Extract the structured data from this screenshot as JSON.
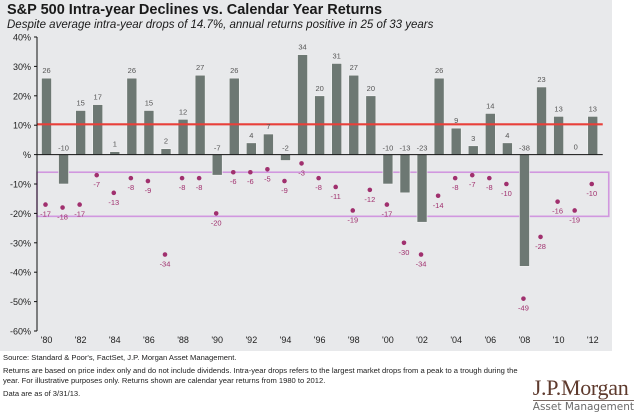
{
  "header": {
    "title": "S&P 500 Intra-year Declines vs. Calendar Year Returns",
    "subtitle": "Despite average intra-year drops of 14.7%, annual returns positive in 25 of 33 years"
  },
  "chart_data": {
    "type": "bar",
    "title": "S&P 500 Intra-year Declines vs. Calendar Year Returns",
    "subtitle": "Despite average intra-year drops of 14.7%, annual returns positive in 25 of 33 years",
    "xlabel": "",
    "ylabel": "",
    "ylim": [
      -60,
      40
    ],
    "yticks": [
      40,
      30,
      20,
      10,
      0,
      -10,
      -20,
      -30,
      -40,
      -50,
      -60
    ],
    "ytick_labels": [
      "40%",
      "30%",
      "20%",
      "10%",
      "%",
      "-10%",
      "-20%",
      "-30%",
      "-40%",
      "-50%",
      "-60%"
    ],
    "categories": [
      1980,
      1981,
      1982,
      1983,
      1984,
      1985,
      1986,
      1987,
      1988,
      1989,
      1990,
      1991,
      1992,
      1993,
      1994,
      1995,
      1996,
      1997,
      1998,
      1999,
      2000,
      2001,
      2002,
      2003,
      2004,
      2005,
      2006,
      2007,
      2008,
      2009,
      2010,
      2011,
      2012
    ],
    "xtick_labels": [
      "'80",
      "'82",
      "'84",
      "'86",
      "'88",
      "'90",
      "'92",
      "'94",
      "'96",
      "'98",
      "'00",
      "'02",
      "'04",
      "'06",
      "'08",
      "'10",
      "'12"
    ],
    "series": [
      {
        "name": "Calendar year return",
        "kind": "bar",
        "color": "#6d7873",
        "values": [
          26,
          -10,
          15,
          17,
          1,
          26,
          15,
          2,
          12,
          27,
          -7,
          26,
          4,
          7,
          -2,
          34,
          20,
          31,
          27,
          20,
          -10,
          -13,
          -23,
          26,
          9,
          3,
          14,
          4,
          -38,
          23,
          13,
          0,
          13
        ]
      },
      {
        "name": "Intra-year decline",
        "kind": "scatter",
        "color": "#a0306e",
        "values": [
          -17,
          -18,
          -17,
          -7,
          -13,
          -8,
          -9,
          -34,
          -8,
          -8,
          -20,
          -6,
          -6,
          -5,
          -9,
          -3,
          -8,
          -11,
          -19,
          -12,
          -17,
          -30,
          -34,
          -14,
          -8,
          -7,
          -8,
          -10,
          -49,
          -28,
          -16,
          -19,
          -10
        ]
      }
    ],
    "reference_line": {
      "value": 10.3,
      "color": "#e8403a",
      "label": ""
    },
    "highlight_band": {
      "from": -6,
      "to": -21,
      "color": "#cc88dd"
    },
    "grid": false,
    "legend": "none"
  },
  "footer": {
    "source": "Source: Standard & Poor's, FactSet, J.P. Morgan Asset Management.",
    "note": "Returns are based on price index only and do not include dividends. Intra-year drops refers to the largest market drops from a peak to a trough during the year. For illustrative purposes only. Returns shown are calendar year returns from 1980 to 2012.",
    "date": "Data are as of 3/31/13."
  },
  "logo": {
    "main": "J.P.Morgan",
    "sub": "Asset Management"
  }
}
